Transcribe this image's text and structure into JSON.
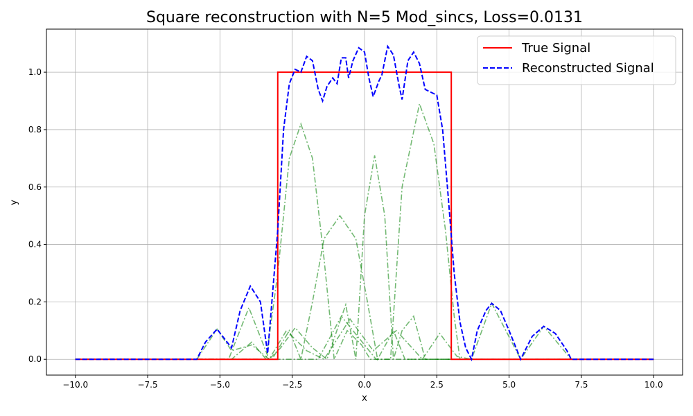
{
  "chart_data": {
    "type": "line",
    "title": "Square reconstruction with N=5 Mod_sincs, Loss=0.0131",
    "x_label": "x",
    "y_label": "y",
    "xlim": [
      -11,
      11
    ],
    "ylim": [
      -0.055,
      1.15
    ],
    "xticks": [
      {
        "value": -10,
        "label": "−10.0"
      },
      {
        "value": -7.5,
        "label": "−7.5"
      },
      {
        "value": -5,
        "label": "−5.0"
      },
      {
        "value": -2.5,
        "label": "−2.5"
      },
      {
        "value": 0,
        "label": "0.0"
      },
      {
        "value": 2.5,
        "label": "2.5"
      },
      {
        "value": 5,
        "label": "5.0"
      },
      {
        "value": 7.5,
        "label": "7.5"
      },
      {
        "value": 10,
        "label": "10.0"
      }
    ],
    "yticks": [
      {
        "value": 0,
        "label": "0.0"
      },
      {
        "value": 0.2,
        "label": "0.2"
      },
      {
        "value": 0.4,
        "label": "0.4"
      },
      {
        "value": 0.6,
        "label": "0.6"
      },
      {
        "value": 0.8,
        "label": "0.8"
      },
      {
        "value": 1,
        "label": "1.0"
      }
    ],
    "grid": true,
    "legend": "upper right",
    "series": [
      {
        "color": "#008000",
        "alpha": 0.55,
        "style": "dashdot",
        "x": [
          -10,
          -4.6,
          -3.9,
          -3.4,
          -3,
          -2.6,
          -2.2,
          -1.8,
          -1.4,
          -1.05,
          -0.6,
          -0.1,
          0.2,
          10
        ],
        "values": [
          0,
          0,
          0.06,
          0,
          0.3,
          0.7,
          0.82,
          0.7,
          0.35,
          0,
          0.1,
          0.05,
          0,
          0
        ]
      },
      {
        "color": "#008000",
        "alpha": 0.55,
        "style": "dashdot",
        "x": [
          -10,
          -3.2,
          -2.6,
          -2.2,
          -1.8,
          -1.4,
          -0.85,
          -0.3,
          0.1,
          0.45,
          1.0,
          1.4,
          10
        ],
        "values": [
          0,
          0,
          0.1,
          0,
          0.2,
          0.42,
          0.5,
          0.42,
          0.2,
          0,
          0.1,
          0,
          0
        ]
      },
      {
        "color": "#008000",
        "alpha": 0.55,
        "style": "dashdot",
        "x": [
          -10,
          -4.7,
          -4,
          -3.3,
          -2.9,
          -2.4,
          -1.8,
          -1.3,
          -0.65,
          -0.3,
          0,
          0.35,
          0.7,
          1.0,
          1.3,
          1.7,
          2.1,
          10
        ],
        "values": [
          0,
          0,
          0.18,
          0,
          0.04,
          0.11,
          0.04,
          0,
          0.19,
          0,
          0.5,
          0.71,
          0.5,
          0,
          0.1,
          0.15,
          0,
          0
        ]
      },
      {
        "color": "#008000",
        "alpha": 0.55,
        "style": "dashdot",
        "x": [
          -10,
          -1.6,
          -0.8,
          0,
          0.4,
          0.9,
          1.3,
          1.9,
          2.4,
          2.8,
          3.1,
          3.3,
          10
        ],
        "values": [
          0,
          0,
          0.15,
          0.05,
          0,
          0,
          0.6,
          0.89,
          0.75,
          0.45,
          0.15,
          0,
          0
        ]
      },
      {
        "color": "#008000",
        "alpha": 0.55,
        "style": "dashdot",
        "x": [
          -10,
          -5.8,
          -5.1,
          -4.6,
          -3.9,
          -3.3,
          -2.7,
          -2,
          -1.4,
          -0.5,
          0.3,
          1.1,
          2.0,
          2.6,
          3.2,
          3.7,
          4.4,
          5.4,
          6.2,
          7.15,
          10
        ],
        "values": [
          0,
          0,
          0.105,
          0.03,
          0.05,
          0,
          0.1,
          0.03,
          0,
          0.14,
          0.03,
          0.1,
          0,
          0.09,
          0.01,
          0,
          0.195,
          0,
          0.115,
          0,
          0
        ]
      },
      {
        "name": "True Signal",
        "color": "#ff0000",
        "style": "solid",
        "x": [
          -10,
          -3,
          -3,
          3,
          3,
          10
        ],
        "values": [
          0,
          0,
          1,
          1,
          0,
          0
        ]
      },
      {
        "name": "Reconstructed Signal",
        "color": "#0000ff",
        "style": "dashed",
        "x": [
          -10,
          -5.8,
          -5.5,
          -5.1,
          -4.6,
          -4.3,
          -3.95,
          -3.6,
          -3.35,
          -3,
          -2.8,
          -2.6,
          -2.4,
          -2.2,
          -2.0,
          -1.8,
          -1.6,
          -1.45,
          -1.3,
          -1.1,
          -0.95,
          -0.8,
          -0.65,
          -0.55,
          -0.4,
          -0.2,
          0,
          0.15,
          0.3,
          0.5,
          0.6,
          0.8,
          1.0,
          1.2,
          1.3,
          1.5,
          1.7,
          1.9,
          2.1,
          2.3,
          2.5,
          2.7,
          2.9,
          3.1,
          3.3,
          3.5,
          3.7,
          3.9,
          4.2,
          4.4,
          4.7,
          5.0,
          5.4,
          5.8,
          6.2,
          6.6,
          7.0,
          7.15,
          10
        ],
        "values": [
          0,
          0,
          0.06,
          0.105,
          0.04,
          0.17,
          0.255,
          0.2,
          0.02,
          0.45,
          0.8,
          0.96,
          1.01,
          1.0,
          1.055,
          1.04,
          0.94,
          0.9,
          0.95,
          0.98,
          0.96,
          1.05,
          1.05,
          0.98,
          1.04,
          1.085,
          1.07,
          0.98,
          0.915,
          0.97,
          0.99,
          1.09,
          1.06,
          0.95,
          0.905,
          1.04,
          1.07,
          1.03,
          0.94,
          0.93,
          0.92,
          0.8,
          0.56,
          0.3,
          0.13,
          0.04,
          0,
          0.1,
          0.17,
          0.195,
          0.17,
          0.1,
          0,
          0.08,
          0.115,
          0.09,
          0.03,
          0,
          0
        ]
      }
    ]
  }
}
